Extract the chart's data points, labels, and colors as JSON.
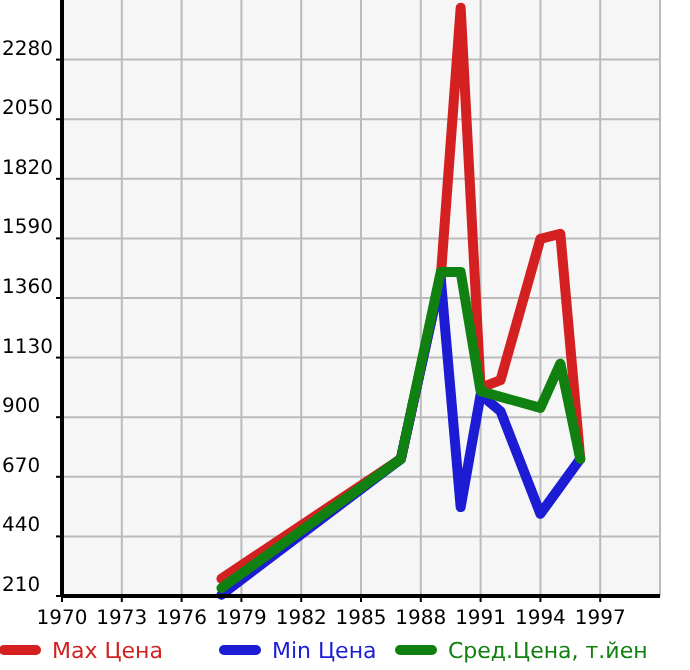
{
  "chart_data": {
    "type": "line",
    "xlim": [
      1970,
      2000
    ],
    "xticks": [
      1970,
      1973,
      1976,
      1979,
      1982,
      1985,
      1988,
      1991,
      1994,
      1997
    ],
    "ylim": [
      210,
      2510
    ],
    "yticks": [
      210,
      440,
      670,
      900,
      1130,
      1360,
      1590,
      1820,
      2050,
      2280
    ],
    "grid": true,
    "legend": "bottom",
    "marker": "none",
    "line_style": "solid",
    "series": [
      {
        "name": "Max Цена",
        "color": "#d42020",
        "x": [
          1978,
          1987,
          1989,
          1990,
          1991,
          1992,
          1994,
          1995,
          1996
        ],
        "values": [
          277,
          739,
          1440,
          2480,
          1013,
          1043,
          1588,
          1608,
          739
        ]
      },
      {
        "name": "Min Цена",
        "color": "#1c1cd4",
        "x": [
          1978,
          1987,
          1989,
          1990,
          1991,
          1992,
          1994,
          1996
        ],
        "values": [
          215,
          739,
          1437,
          553,
          987,
          923,
          527,
          739
        ]
      },
      {
        "name": "Сред.Цена, т.йен",
        "color": "#108010",
        "x": [
          1978,
          1987,
          1989,
          1990,
          1991,
          1994,
          1995,
          1996
        ],
        "values": [
          241,
          739,
          1460,
          1460,
          1000,
          936,
          1107,
          739
        ]
      }
    ]
  }
}
